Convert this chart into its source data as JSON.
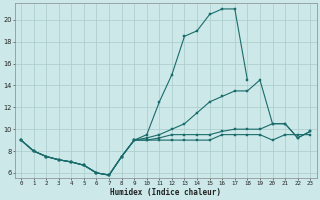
{
  "xlabel": "Humidex (Indice chaleur)",
  "background_color": "#cce8e8",
  "line_color": "#1a6b6b",
  "grid_color": "#aacccc",
  "xlim": [
    -0.5,
    23.5
  ],
  "ylim": [
    5.5,
    21.5
  ],
  "xticks": [
    0,
    1,
    2,
    3,
    4,
    5,
    6,
    7,
    8,
    9,
    10,
    11,
    12,
    13,
    14,
    15,
    16,
    17,
    18,
    19,
    20,
    21,
    22,
    23
  ],
  "yticks": [
    6,
    8,
    10,
    12,
    14,
    16,
    18,
    20
  ],
  "curve1_x": [
    0,
    1,
    2,
    3,
    4,
    5,
    6,
    7,
    8,
    9,
    10,
    11,
    12,
    13,
    14,
    15,
    16,
    17,
    18
  ],
  "curve1_y": [
    9.0,
    8.0,
    7.5,
    7.2,
    7.0,
    6.7,
    6.0,
    5.8,
    7.5,
    9.0,
    9.5,
    12.5,
    15.0,
    18.5,
    19.0,
    20.5,
    21.0,
    21.0,
    14.5
  ],
  "curve2_x": [
    0,
    1,
    2,
    3,
    4,
    5,
    6,
    7,
    8,
    9,
    10,
    11,
    12,
    13,
    14,
    15,
    16,
    17,
    18,
    19,
    20,
    21,
    22,
    23
  ],
  "curve2_y": [
    9.0,
    8.0,
    7.5,
    7.2,
    7.0,
    6.7,
    6.0,
    5.8,
    7.5,
    9.0,
    9.0,
    9.0,
    9.0,
    9.0,
    9.0,
    9.0,
    9.5,
    9.5,
    9.5,
    9.5,
    9.0,
    9.5,
    9.5,
    9.5
  ],
  "curve3_x": [
    0,
    1,
    2,
    3,
    4,
    5,
    6,
    7,
    8,
    9,
    10,
    11,
    12,
    13,
    14,
    15,
    16,
    17,
    18,
    19,
    20,
    21,
    22,
    23
  ],
  "curve3_y": [
    9.0,
    8.0,
    7.5,
    7.2,
    7.0,
    6.7,
    6.0,
    5.8,
    7.5,
    9.0,
    9.2,
    9.5,
    10.0,
    10.5,
    11.5,
    12.5,
    13.0,
    13.5,
    13.5,
    14.5,
    10.5,
    10.5,
    9.2,
    9.8
  ],
  "curve4_x": [
    0,
    1,
    2,
    3,
    4,
    5,
    6,
    7,
    8,
    9,
    10,
    11,
    12,
    13,
    14,
    15,
    16,
    17,
    18,
    19,
    20,
    21,
    22,
    23
  ],
  "curve4_y": [
    9.0,
    8.0,
    7.5,
    7.2,
    7.0,
    6.7,
    6.0,
    5.8,
    7.5,
    9.0,
    9.0,
    9.2,
    9.5,
    9.5,
    9.5,
    9.5,
    9.8,
    10.0,
    10.0,
    10.0,
    10.5,
    10.5,
    9.2,
    9.8
  ]
}
